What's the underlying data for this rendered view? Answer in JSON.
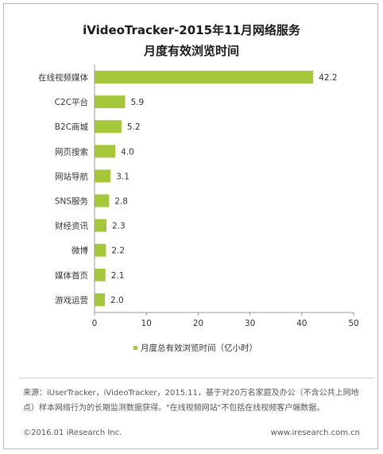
{
  "chart_data": {
    "type": "bar",
    "orientation": "horizontal",
    "title_line1": "iVideoTracker-2015年11月网络服务",
    "title_line2": "月度有效浏览时间",
    "categories": [
      "在线视频媒体",
      "C2C平台",
      "B2C商城",
      "网页搜索",
      "网站导航",
      "SNS服务",
      "财经资讯",
      "微博",
      "媒体首页",
      "游戏运营"
    ],
    "values": [
      42.2,
      5.9,
      5.2,
      4.0,
      3.1,
      2.8,
      2.3,
      2.2,
      2.1,
      2.0
    ],
    "value_labels": [
      "42.2",
      "5.9",
      "5.2",
      "4.0",
      "3.1",
      "2.8",
      "2.3",
      "2.2",
      "2.1",
      "2.0"
    ],
    "xlim": [
      0,
      50
    ],
    "xticks": [
      0,
      10,
      20,
      30,
      40,
      50
    ],
    "grid": false,
    "legend_position": "bottom",
    "series": [
      {
        "name": "月度总有效浏览时间（亿小时）",
        "color": "#a5c73a"
      }
    ]
  },
  "note": "来源：iUserTracker，iVideoTracker，2015.11，基于对20万名家庭及办公（不含公共上网地点）样本网络行为的长期监测数据获得。\"在线视频网站\"不包括在线视频客户端数据。",
  "footer": {
    "copyright": "©2016.01 iResearch Inc.",
    "website": "www.iresearch.com.cn"
  },
  "colors": {
    "bar": "#a5c73a",
    "axis": "#999999",
    "text": "#333333"
  }
}
